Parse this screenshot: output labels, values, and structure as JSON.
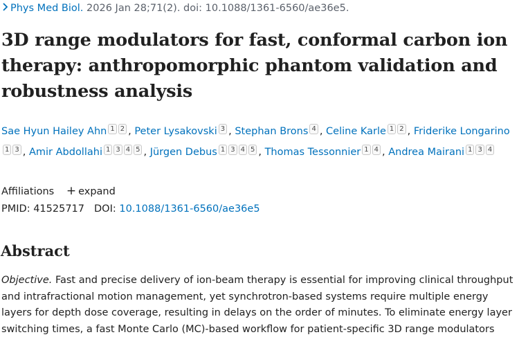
{
  "citation": {
    "chevron": "chevron-right-icon",
    "journal": "Phys Med Biol.",
    "details": " 2026 Jan 28;71(2). doi: 10.1088/1361-6560/ae36e5."
  },
  "title": "3D range modulators for fast, conformal carbon ion therapy: anthropomorphic phantom validation and robustness analysis",
  "authors": [
    {
      "name": "Sae Hyun Hailey Ahn",
      "affils": [
        "1",
        "2"
      ]
    },
    {
      "name": "Peter Lysakovski",
      "affils": [
        "3"
      ]
    },
    {
      "name": "Stephan Brons",
      "affils": [
        "4"
      ]
    },
    {
      "name": "Celine Karle",
      "affils": [
        "1",
        "2"
      ]
    },
    {
      "name": "Friderike Longarino",
      "affils": [
        "1",
        "3"
      ]
    },
    {
      "name": "Amir Abdollahi",
      "affils": [
        "1",
        "3",
        "4",
        "5"
      ]
    },
    {
      "name": "Jürgen Debus",
      "affils": [
        "1",
        "3",
        "4",
        "5"
      ]
    },
    {
      "name": "Thomas Tessonnier",
      "affils": [
        "1",
        "4"
      ]
    },
    {
      "name": "Andrea Mairani",
      "affils": [
        "1",
        "3",
        "4"
      ]
    }
  ],
  "affiliations": {
    "label": "Affiliations",
    "expand_icon": "plus-icon",
    "expand_label": "expand"
  },
  "ids": {
    "pmid_label": "PMID:",
    "pmid": "41525717",
    "doi_label": "DOI:",
    "doi": "10.1088/1361-6560/ae36e5"
  },
  "abstract": {
    "heading": "Abstract",
    "objective_label": "Objective.",
    "text": " Fast and precise delivery of ion-beam therapy is essential for improving clinical throughput and intrafractional motion management, yet synchrotron-based systems require multiple energy layers for depth dose coverage, resulting in delays on the order of minutes. To eliminate energy layer switching times, a fast Monte Carlo (MC)-based workflow for patient-specific 3D range modulators"
  }
}
